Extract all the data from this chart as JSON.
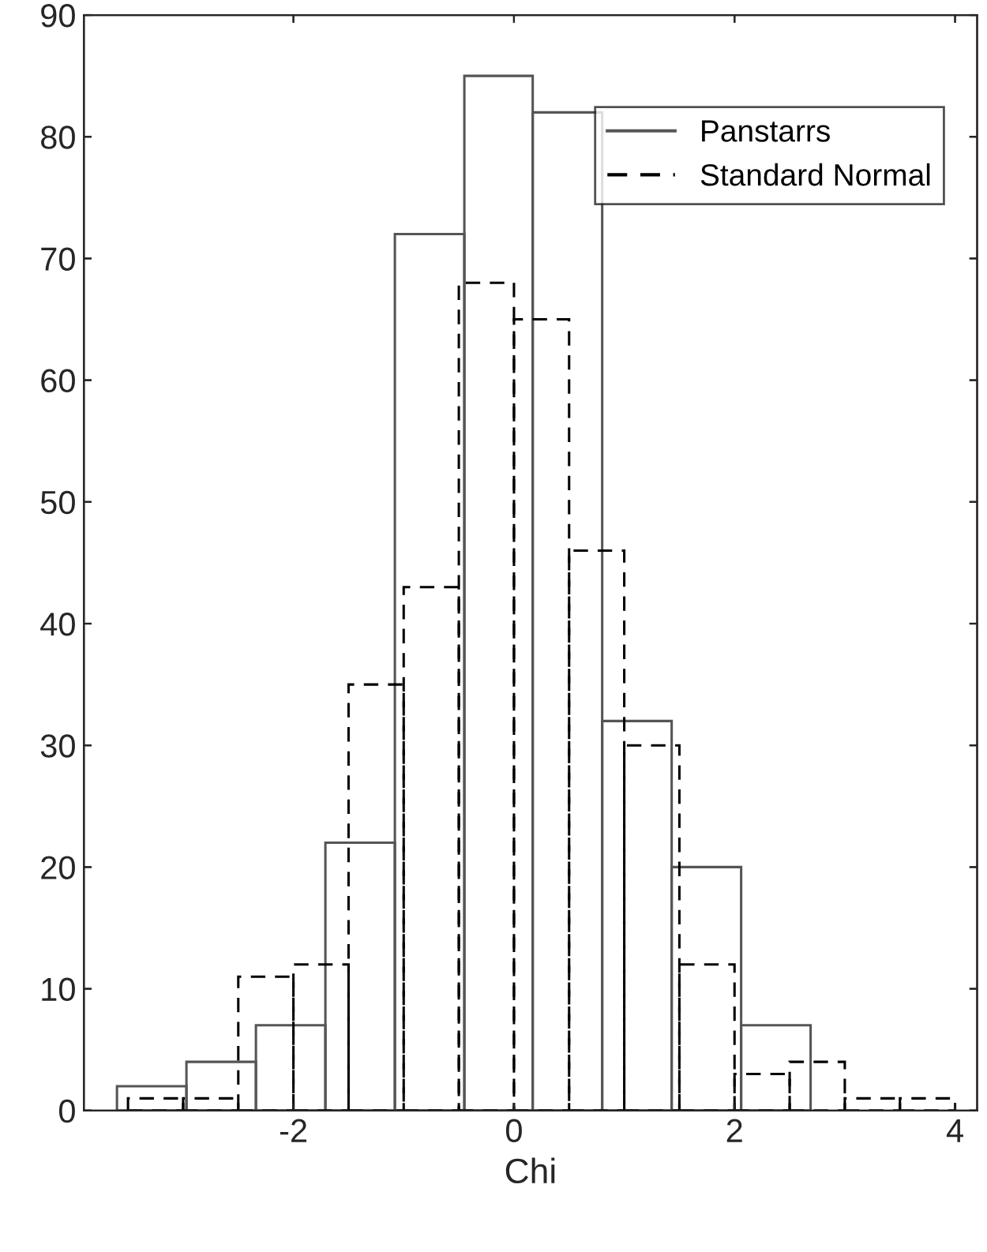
{
  "chart_data": [
    {
      "type": "histogram",
      "xlabel": "Chi",
      "xlim": [
        -3.9,
        4.2
      ],
      "ylim": [
        0,
        90
      ],
      "xticks": [
        -2,
        0,
        2,
        4
      ],
      "yticks": [
        0,
        10,
        20,
        30,
        40,
        50,
        60,
        70,
        80,
        90
      ],
      "legend": "top right",
      "bins": [
        -3.6,
        -2.97,
        -2.34,
        -1.71,
        -1.08,
        -0.45,
        0.17,
        0.8,
        1.43,
        2.06,
        2.69
      ],
      "series": [
        {
          "name": "Panstarrs",
          "color": "#555555",
          "line_style": "solid",
          "values": [
            2,
            4,
            7,
            22,
            72,
            85,
            82,
            32,
            20,
            7
          ]
        }
      ]
    },
    {
      "type": "histogram",
      "xlim": [
        -3.9,
        4.2
      ],
      "ylim": [
        0,
        90
      ],
      "xticks": [
        -2,
        0,
        2,
        4
      ],
      "yticks": [
        0,
        10,
        20,
        30,
        40,
        50,
        60,
        70,
        80,
        90
      ],
      "tick_labels": false,
      "legend": "top right",
      "bins": [
        -3.5,
        -3,
        -2.5,
        -2,
        -1.5,
        -1,
        -0.5,
        0,
        0.5,
        1,
        1.5,
        2,
        2.5,
        3,
        3.5,
        4
      ],
      "series": [
        {
          "name": "Standard Normal",
          "color": "#000000",
          "line_style": "dashed",
          "values": [
            1,
            1,
            11,
            12,
            35,
            43,
            68,
            65,
            46,
            30,
            12,
            3,
            4,
            1,
            1
          ]
        }
      ]
    }
  ]
}
